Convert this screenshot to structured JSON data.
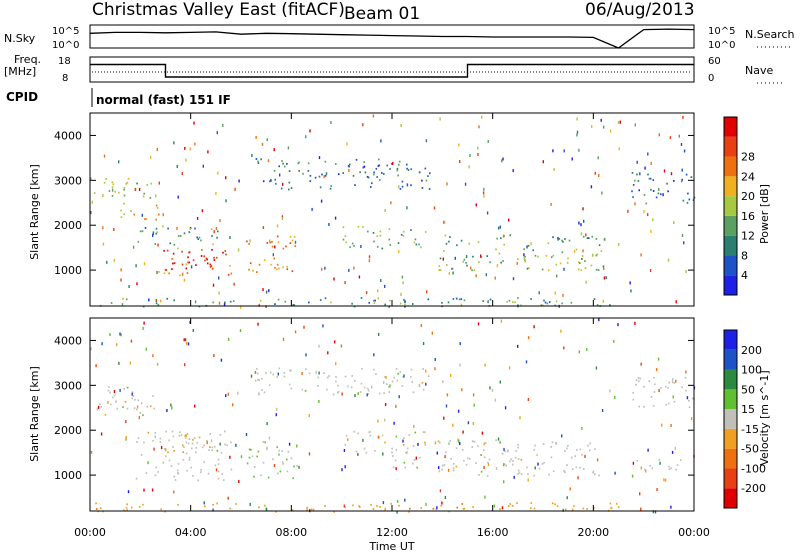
{
  "header": {
    "title": "Christmas Valley East (fitACF)",
    "beam": "Beam 01",
    "date": "06/Aug/2013"
  },
  "panels": {
    "nsky": {
      "left_label": "N.Sky",
      "right_label": "N.Search",
      "left_ticks": [
        "10^5",
        "10^0"
      ],
      "right_ticks": [
        "10^5",
        "10^0"
      ]
    },
    "freq": {
      "left_label_1": "Freq.",
      "left_label_2": "[MHz]",
      "right_label": "Nave",
      "left_ticks": [
        "18",
        "8"
      ],
      "right_ticks": [
        "60",
        "0"
      ]
    },
    "cpid": {
      "label": "CPID",
      "text": "normal (fast) 151 IF"
    }
  },
  "colors": {
    "power": [
      "#1f20e6",
      "#1d52c8",
      "#2a7f6e",
      "#5aa060",
      "#a8c840",
      "#f0b020",
      "#f07010",
      "#e84010",
      "#e00000"
    ],
    "velocity": [
      "#e00000",
      "#e84010",
      "#f07010",
      "#f0a020",
      "#c0c0b8",
      "#60c030",
      "#2a8a40",
      "#1d52c8",
      "#1f20e6"
    ],
    "frame": "#000000"
  },
  "chart_data": [
    {
      "type": "heatmap",
      "name": "power",
      "xlabel": "",
      "ylabel": "Slant Range [km]",
      "x_ticks": [
        "00:00",
        "04:00",
        "08:00",
        "12:00",
        "16:00",
        "20:00",
        "00:00"
      ],
      "xlim": [
        0,
        24
      ],
      "ylim": [
        200,
        4500
      ],
      "y_ticks": [
        1000,
        2000,
        3000,
        4000
      ],
      "colorbar": {
        "label": "Power [dB]",
        "ticks": [
          "4",
          "8",
          "12",
          "16",
          "20",
          "24",
          "28"
        ],
        "range": [
          0,
          30
        ]
      },
      "gap_hours": [
        21.1,
        21.3
      ],
      "regions": [
        {
          "t0": 0.0,
          "t1": 2.6,
          "r0": 2600,
          "r1": 3100,
          "value": 14
        },
        {
          "t0": 1.2,
          "t1": 2.8,
          "r0": 2100,
          "r1": 2500,
          "value": 18
        },
        {
          "t0": 1.8,
          "t1": 5.2,
          "r0": 1500,
          "r1": 2000,
          "value": 10
        },
        {
          "t0": 2.6,
          "t1": 5.6,
          "r0": 900,
          "r1": 1500,
          "value": 24
        },
        {
          "t0": 3.0,
          "t1": 5.0,
          "r0": 1050,
          "r1": 1400,
          "value": 28
        },
        {
          "t0": 6.2,
          "t1": 8.2,
          "r0": 950,
          "r1": 1800,
          "value": 22
        },
        {
          "t0": 6.5,
          "t1": 13.5,
          "r0": 2800,
          "r1": 3500,
          "value": 8
        },
        {
          "t0": 10.0,
          "t1": 13.4,
          "r0": 1500,
          "r1": 2000,
          "value": 12
        },
        {
          "t0": 13.8,
          "t1": 20.5,
          "r0": 1000,
          "r1": 1500,
          "value": 14
        },
        {
          "t0": 14.0,
          "t1": 20.5,
          "r0": 1550,
          "r1": 1800,
          "value": 10
        },
        {
          "t0": 0.0,
          "t1": 21.0,
          "r0": 200,
          "r1": 400,
          "value": 10
        },
        {
          "t0": 21.5,
          "t1": 24.0,
          "r0": 2500,
          "r1": 3200,
          "value": 6
        }
      ]
    },
    {
      "type": "heatmap",
      "name": "velocity",
      "xlabel": "Time UT",
      "ylabel": "Slant Range [km]",
      "x_ticks": [
        "00:00",
        "04:00",
        "08:00",
        "12:00",
        "16:00",
        "20:00",
        "00:00"
      ],
      "xlim": [
        0,
        24
      ],
      "ylim": [
        200,
        4500
      ],
      "y_ticks": [
        1000,
        2000,
        3000,
        4000
      ],
      "colorbar": {
        "label": "Velocity [m s^-1]",
        "ticks": [
          "200",
          "100",
          "50",
          "15",
          "-15",
          "-50",
          "-100",
          "-200"
        ],
        "range": [
          -250,
          250
        ]
      },
      "gap_hours": [
        21.1,
        21.3
      ],
      "regions": [
        {
          "t0": 0.3,
          "t1": 2.8,
          "r0": 2300,
          "r1": 3000,
          "value": 0
        },
        {
          "t0": 1.8,
          "t1": 5.6,
          "r0": 900,
          "r1": 2000,
          "value": 0
        },
        {
          "t0": 3.0,
          "t1": 4.8,
          "r0": 1500,
          "r1": 1900,
          "value": -30
        },
        {
          "t0": 6.2,
          "t1": 8.2,
          "r0": 950,
          "r1": 1800,
          "value": 30
        },
        {
          "t0": 6.5,
          "t1": 13.5,
          "r0": 2800,
          "r1": 3400,
          "value": 0
        },
        {
          "t0": 10.0,
          "t1": 13.4,
          "r0": 1500,
          "r1": 2000,
          "value": 0
        },
        {
          "t0": 12.0,
          "t1": 13.4,
          "r0": 1150,
          "r1": 1500,
          "value": 30
        },
        {
          "t0": 13.8,
          "t1": 20.5,
          "r0": 1000,
          "r1": 1800,
          "value": 0
        },
        {
          "t0": 0.0,
          "t1": 21.0,
          "r0": 200,
          "r1": 400,
          "value": -60
        },
        {
          "t0": 21.5,
          "t1": 24.0,
          "r0": 2500,
          "r1": 3200,
          "value": 0
        },
        {
          "t0": 21.5,
          "t1": 23.5,
          "r0": 1100,
          "r1": 1400,
          "value": 0
        }
      ]
    },
    {
      "type": "line",
      "name": "nsky",
      "series": [
        {
          "x": [
            0,
            1,
            2,
            3,
            4,
            5,
            6,
            7,
            8,
            9,
            10,
            11,
            12,
            13,
            14,
            15,
            16,
            17,
            18,
            19,
            20,
            21,
            22,
            23,
            24
          ],
          "y": [
            3.2,
            3.4,
            3.4,
            3.3,
            3.4,
            3.5,
            3.0,
            3.2,
            3.1,
            3.0,
            2.9,
            2.8,
            2.7,
            2.6,
            2.5,
            2.5,
            2.4,
            2.4,
            2.4,
            2.4,
            2.3,
            0,
            4.0,
            4.1,
            4.0
          ]
        }
      ],
      "ylim": [
        0,
        5
      ]
    },
    {
      "type": "line",
      "name": "freq",
      "series": [
        {
          "x": [
            0,
            3,
            3,
            15,
            15,
            21,
            21.5,
            24
          ],
          "y": [
            15,
            15,
            10,
            10,
            15,
            15,
            15,
            15
          ]
        }
      ],
      "ylim": [
        8,
        18
      ]
    }
  ]
}
